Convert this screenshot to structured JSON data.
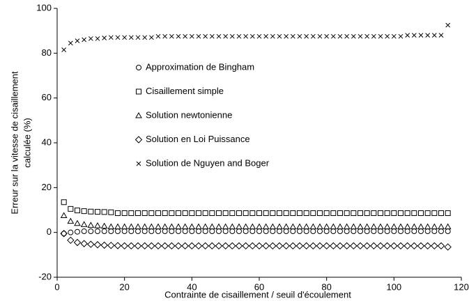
{
  "chart_data": {
    "type": "scatter",
    "x_label": "Contrainte de cisaillement / seuil d'écoulement",
    "y_label": [
      "Erreur sur la vitesse de cisaillement",
      "calculée (%)"
    ],
    "xlim": [
      0,
      120
    ],
    "xticks": [
      0,
      20,
      40,
      60,
      80,
      100,
      120
    ],
    "ylim": [
      -20,
      100
    ],
    "yticks": [
      -20,
      0,
      20,
      40,
      60,
      80,
      100
    ],
    "grid": false,
    "legend": "center-left",
    "x": [
      2,
      4,
      6,
      8,
      10,
      12,
      14,
      16,
      18,
      20,
      22,
      24,
      26,
      28,
      30,
      32,
      34,
      36,
      38,
      40,
      42,
      44,
      46,
      48,
      50,
      52,
      54,
      56,
      58,
      60,
      62,
      64,
      66,
      68,
      70,
      72,
      74,
      76,
      78,
      80,
      82,
      84,
      86,
      88,
      90,
      92,
      94,
      96,
      98,
      100,
      102,
      104,
      106,
      108,
      110,
      112,
      114,
      116
    ],
    "series": [
      {
        "name": "Approximation de Bingham",
        "marker": "circle",
        "color": "#000000",
        "values": [
          -0.5,
          0,
          0.3,
          0.5,
          0.5,
          0.5,
          0.5,
          0.5,
          0.5,
          0.5,
          0.5,
          0.5,
          0.5,
          0.5,
          0.5,
          0.5,
          0.5,
          0.5,
          0.5,
          0.5,
          0.5,
          0.5,
          0.5,
          0.5,
          0.5,
          0.5,
          0.5,
          0.5,
          0.5,
          0.5,
          0.5,
          0.5,
          0.5,
          0.5,
          0.5,
          0.5,
          0.5,
          0.5,
          0.5,
          0.5,
          0.5,
          0.5,
          0.5,
          0.5,
          0.5,
          0.5,
          0.5,
          0.5,
          0.5,
          0.5,
          0.5,
          0.5,
          0.5,
          0.5,
          0.5,
          0.5,
          0.5,
          0.5
        ]
      },
      {
        "name": "Cisaillement simple",
        "marker": "square",
        "color": "#000000",
        "values": [
          13.5,
          10.5,
          9.8,
          9.5,
          9.3,
          9.2,
          9.1,
          9,
          8.6,
          8.6,
          8.6,
          8.6,
          8.6,
          8.6,
          8.6,
          8.6,
          8.6,
          8.6,
          8.6,
          8.6,
          8.6,
          8.6,
          8.6,
          8.6,
          8.6,
          8.6,
          8.6,
          8.6,
          8.6,
          8.6,
          8.6,
          8.6,
          8.6,
          8.6,
          8.6,
          8.6,
          8.6,
          8.6,
          8.6,
          8.6,
          8.6,
          8.6,
          8.6,
          8.6,
          8.6,
          8.6,
          8.6,
          8.6,
          8.6,
          8.6,
          8.6,
          8.6,
          8.6,
          8.6,
          8.6,
          8.6,
          8.6,
          8.6
        ]
      },
      {
        "name": "Solution newtonienne",
        "marker": "triangle",
        "color": "#000000",
        "values": [
          7.5,
          5,
          4,
          3.5,
          3.2,
          3,
          2.8,
          2.5,
          2.5,
          2.5,
          2.5,
          2.5,
          2.5,
          2.5,
          2.5,
          2.5,
          2.5,
          2.5,
          2.5,
          2.5,
          2.5,
          2.5,
          2.5,
          2.5,
          2.5,
          2.5,
          2.5,
          2.5,
          2.5,
          2.5,
          2.5,
          2.5,
          2.5,
          2.5,
          2.5,
          2.5,
          2.5,
          2.5,
          2.5,
          2.5,
          2.5,
          2.5,
          2.5,
          2.5,
          2.5,
          2.5,
          2.5,
          2.5,
          2.5,
          2.5,
          2.5,
          2.5,
          2.5,
          2.5,
          2.5,
          2.5,
          2.5,
          2.5
        ]
      },
      {
        "name": "Solution en Loi Puissance",
        "marker": "diamond",
        "color": "#000000",
        "values": [
          -0.5,
          -3.5,
          -4.5,
          -5,
          -5.3,
          -5.5,
          -5.7,
          -5.8,
          -5.9,
          -6,
          -6,
          -6,
          -6,
          -6,
          -6,
          -6,
          -6,
          -6,
          -6,
          -6,
          -6,
          -6,
          -6,
          -6,
          -6,
          -6,
          -6,
          -6,
          -6,
          -6,
          -6,
          -6,
          -6,
          -6,
          -6,
          -6,
          -6,
          -6,
          -6,
          -6,
          -6,
          -6,
          -6,
          -6,
          -6,
          -6,
          -6,
          -6,
          -6,
          -6,
          -6,
          -6,
          -6,
          -6,
          -6,
          -6,
          -6,
          -6.5
        ]
      },
      {
        "name": "Solution de Nguyen and Boger",
        "marker": "cross",
        "color": "#000000",
        "values": [
          81.5,
          84.5,
          85.5,
          86,
          86.5,
          86.5,
          86.8,
          87,
          87,
          87,
          87,
          87,
          87,
          87,
          87.5,
          87.5,
          87.5,
          87.5,
          87.5,
          87.5,
          87.5,
          87.5,
          87.5,
          87.5,
          87.5,
          87.5,
          87.5,
          87.5,
          87.5,
          87.5,
          87.5,
          87.5,
          87.5,
          87.5,
          87.5,
          87.5,
          87.5,
          87.5,
          87.5,
          87.5,
          87.5,
          87.5,
          87.5,
          87.5,
          87.5,
          87.5,
          87.5,
          87.5,
          87.5,
          87.5,
          87.5,
          88,
          88,
          88,
          88,
          88,
          88,
          92.5
        ]
      }
    ]
  }
}
